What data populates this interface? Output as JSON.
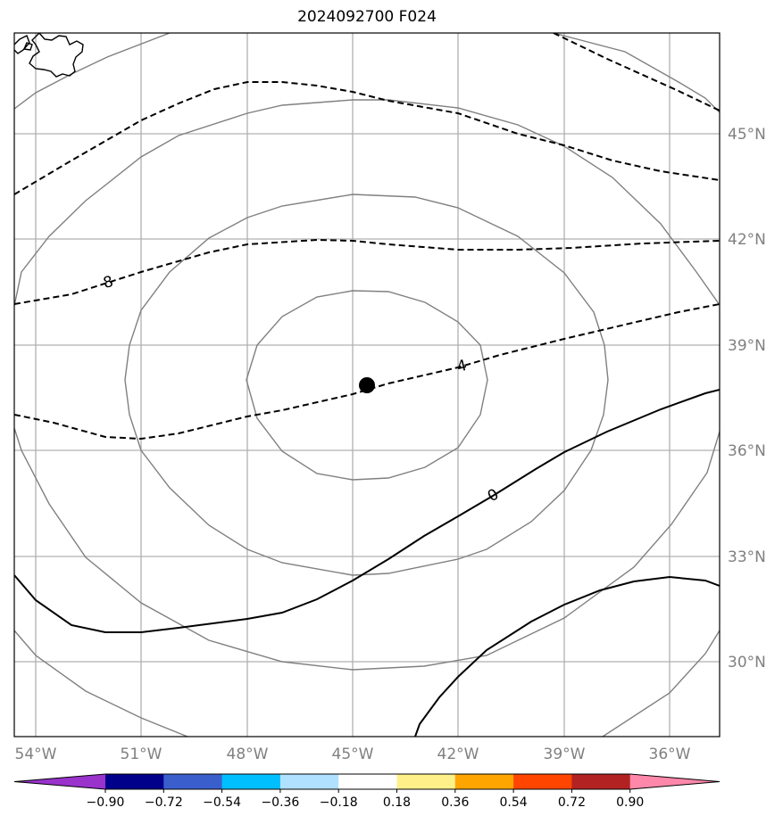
{
  "title": "2024092700 F024",
  "lon_labels": [
    "54°W",
    "51°W",
    "48°W",
    "45°W",
    "42°W",
    "39°W",
    "36°W"
  ],
  "lat_labels": [
    "45°N",
    "42°N",
    "39°N",
    "36°N",
    "33°N",
    "30°N"
  ],
  "contour_labels": [
    "8",
    "4",
    "0"
  ],
  "center_marker": {
    "lon": -44.6,
    "lat": 37.9
  },
  "colorbar": {
    "ticks": [
      "−0.90",
      "−0.72",
      "−0.54",
      "−0.36",
      "−0.18",
      "0.18",
      "0.36",
      "0.54",
      "0.72",
      "0.90"
    ],
    "colors": [
      "#9933cc",
      "#00008b",
      "#3a5fcd",
      "#00bfff",
      "#b0e2ff",
      "#ffffff",
      "#fff08a",
      "#ffa500",
      "#ff4500",
      "#b22222",
      "#ff88aa"
    ]
  },
  "colors": {
    "grid": "#b0b0b0",
    "circles": "#808080",
    "contour": "#000000"
  }
}
